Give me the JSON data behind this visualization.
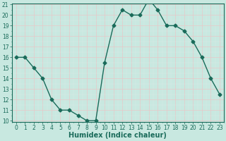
{
  "x": [
    0,
    1,
    2,
    3,
    4,
    5,
    6,
    7,
    8,
    9,
    10,
    11,
    12,
    13,
    14,
    15,
    16,
    17,
    18,
    19,
    20,
    21,
    22,
    23
  ],
  "y": [
    16,
    16,
    15,
    14,
    12,
    11,
    11,
    10.5,
    10,
    10,
    15.5,
    19,
    20.5,
    20,
    20,
    21.5,
    20.5,
    19,
    19,
    18.5,
    17.5,
    16,
    14,
    12.5
  ],
  "line_color": "#1a6b5a",
  "marker": "D",
  "marker_size": 2.5,
  "bg_color": "#c8e8e0",
  "grid_color_major": "#e8c8c8",
  "grid_color_minor": "#dde8e6",
  "xlabel": "Humidex (Indice chaleur)",
  "ylim": [
    10,
    21
  ],
  "xlim": [
    -0.5,
    23.5
  ],
  "yticks": [
    10,
    11,
    12,
    13,
    14,
    15,
    16,
    17,
    18,
    19,
    20,
    21
  ],
  "xticks": [
    0,
    1,
    2,
    3,
    4,
    5,
    6,
    7,
    8,
    9,
    10,
    11,
    12,
    13,
    14,
    15,
    16,
    17,
    18,
    19,
    20,
    21,
    22,
    23
  ],
  "tick_fontsize": 5.5,
  "xlabel_fontsize": 7,
  "line_width": 1.0
}
